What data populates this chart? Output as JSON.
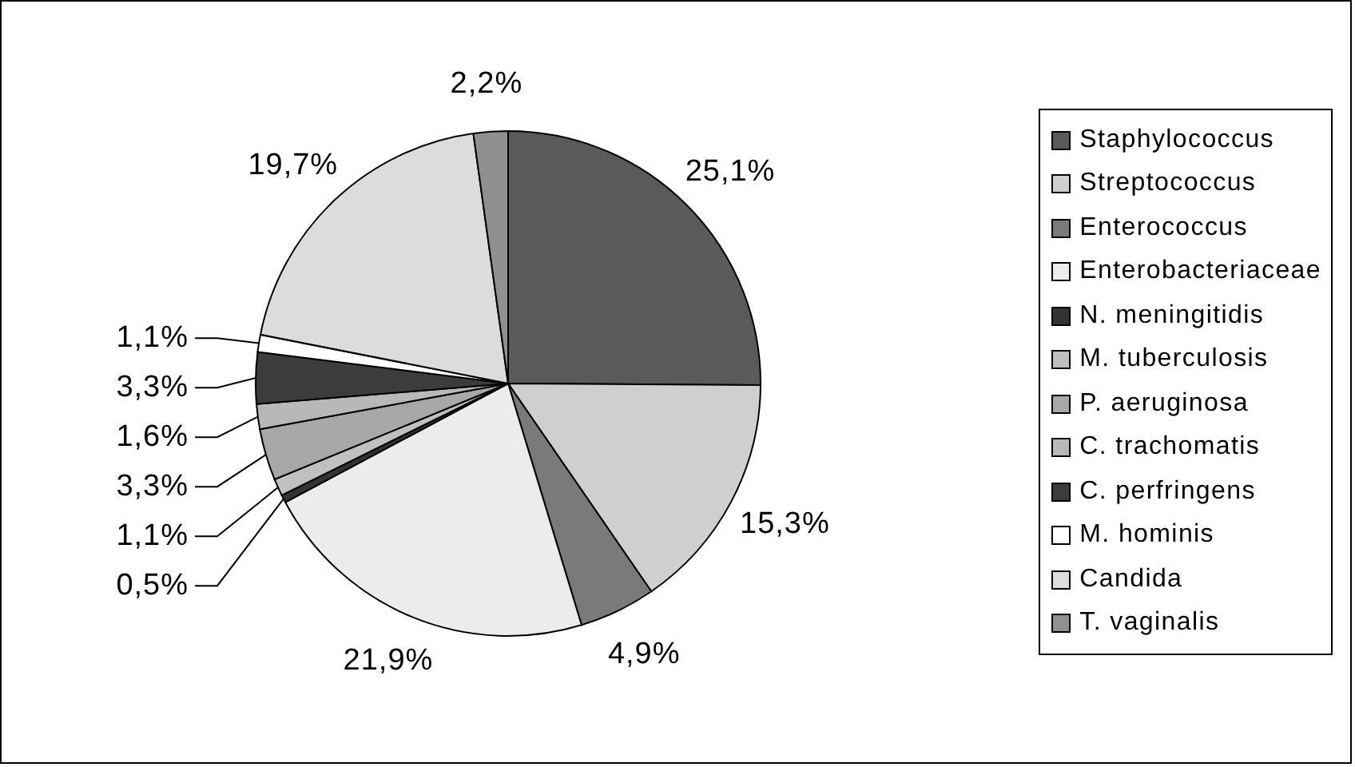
{
  "chart_data": {
    "type": "pie",
    "categories": [
      "Staphylococcus",
      "Streptococcus",
      "Enterococcus",
      "Enterobacteriaceae",
      "N. meningitidis",
      "M. tuberculosis",
      "P. aeruginosa",
      "C. trachomatis",
      "C. perfringens",
      "M. hominis",
      "Candida",
      "T. vaginalis"
    ],
    "values": [
      25.1,
      15.3,
      4.9,
      21.9,
      0.5,
      1.1,
      3.3,
      1.6,
      3.3,
      1.1,
      19.7,
      2.2
    ],
    "colors": [
      "#5a5a5a",
      "#cfcfcf",
      "#7a7a7a",
      "#ececec",
      "#333333",
      "#c0c0c0",
      "#a8a8a8",
      "#b8b8b8",
      "#3c3c3c",
      "#ffffff",
      "#dcdcdc",
      "#909090"
    ],
    "value_labels": [
      "25,1%",
      "15,3%",
      "4,9%",
      "21,9%",
      "0,5%",
      "1,1%",
      "3,3%",
      "1,6%",
      "3,3%",
      "1,1%",
      "19,7%",
      "2,2%"
    ],
    "legend": "right"
  }
}
